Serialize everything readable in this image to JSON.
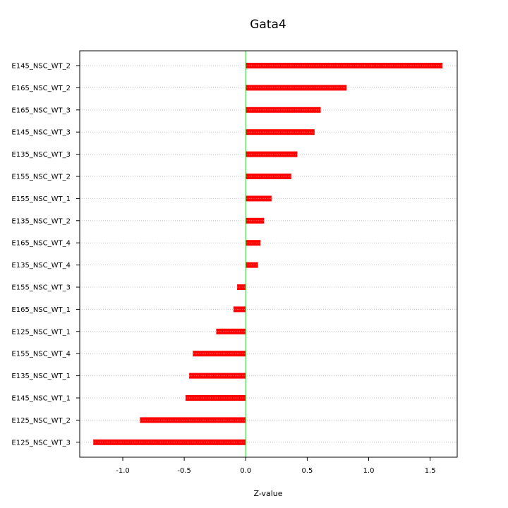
{
  "chart_data": {
    "type": "bar",
    "orientation": "horizontal",
    "title": "Gata4",
    "xlabel": "Z-value",
    "ylabel": "",
    "xlim": [
      -1.35,
      1.72
    ],
    "xticks": [
      -1.0,
      -0.5,
      0.0,
      0.5,
      1.0,
      1.5
    ],
    "xtick_labels": [
      "-1.0",
      "-0.5",
      "0.0",
      "0.5",
      "1.0",
      "1.5"
    ],
    "grid": "horizontal dotted at each category",
    "reference_line": {
      "x": 0,
      "color": "#33cc33"
    },
    "bar_color": "#ff0000",
    "categories": [
      "E145_NSC_WT_2",
      "E165_NSC_WT_2",
      "E165_NSC_WT_3",
      "E145_NSC_WT_3",
      "E135_NSC_WT_3",
      "E155_NSC_WT_2",
      "E155_NSC_WT_1",
      "E135_NSC_WT_2",
      "E165_NSC_WT_4",
      "E135_NSC_WT_4",
      "E155_NSC_WT_3",
      "E165_NSC_WT_1",
      "E125_NSC_WT_1",
      "E155_NSC_WT_4",
      "E135_NSC_WT_1",
      "E145_NSC_WT_1",
      "E125_NSC_WT_2",
      "E125_NSC_WT_3"
    ],
    "values": [
      1.6,
      0.82,
      0.61,
      0.56,
      0.42,
      0.37,
      0.21,
      0.15,
      0.12,
      0.1,
      -0.07,
      -0.1,
      -0.24,
      -0.43,
      -0.46,
      -0.49,
      -0.86,
      -1.24
    ]
  }
}
